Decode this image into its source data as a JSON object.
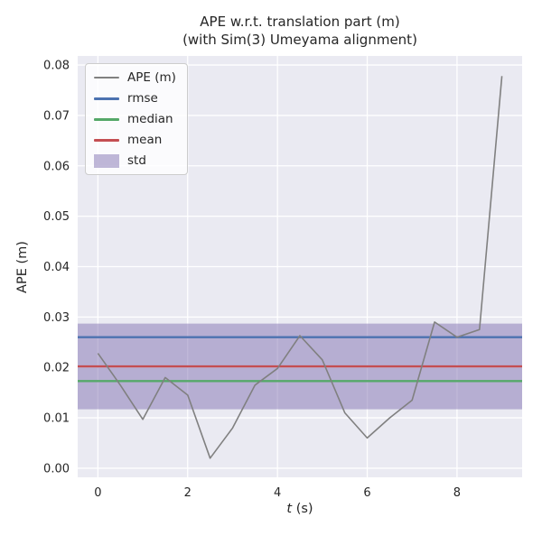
{
  "style": {
    "plot_bg": "#eaeaf2",
    "grid": "#ffffff",
    "text": "#262626"
  },
  "chart_data": {
    "type": "line",
    "title": "APE w.r.t. translation part (m)",
    "subtitle": "(with Sim(3) Umeyama alignment)",
    "xlabel": "t (s)",
    "xlabel_var": "t",
    "xlabel_unit": " (s)",
    "ylabel": "APE (m)",
    "xlim": [
      -0.45,
      9.45
    ],
    "ylim": [
      -0.0018,
      0.0818
    ],
    "grid": true,
    "legend_position": "upper left",
    "xticks": [
      {
        "value": 0,
        "label": "0"
      },
      {
        "value": 2,
        "label": "2"
      },
      {
        "value": 4,
        "label": "4"
      },
      {
        "value": 6,
        "label": "6"
      },
      {
        "value": 8,
        "label": "8"
      }
    ],
    "yticks": [
      {
        "value": 0.0,
        "label": "0.00"
      },
      {
        "value": 0.01,
        "label": "0.01"
      },
      {
        "value": 0.02,
        "label": "0.02"
      },
      {
        "value": 0.03,
        "label": "0.03"
      },
      {
        "value": 0.04,
        "label": "0.04"
      },
      {
        "value": 0.05,
        "label": "0.05"
      },
      {
        "value": 0.06,
        "label": "0.06"
      },
      {
        "value": 0.07,
        "label": "0.07"
      },
      {
        "value": 0.08,
        "label": "0.08"
      }
    ],
    "series": [
      {
        "name": "APE (m)",
        "color": "#808080",
        "x": [
          0,
          0.5,
          1,
          1.5,
          2,
          2.5,
          3,
          3.5,
          4,
          4.5,
          5,
          5.5,
          6,
          6.5,
          7,
          7.5,
          8,
          8.5,
          9
        ],
        "y": [
          0.0228,
          0.0165,
          0.0097,
          0.018,
          0.0145,
          0.002,
          0.008,
          0.0165,
          0.0198,
          0.0263,
          0.0215,
          0.011,
          0.006,
          0.01,
          0.0135,
          0.029,
          0.026,
          0.0275,
          0.0778
        ]
      }
    ],
    "stat_lines": [
      {
        "name": "rmse",
        "value": 0.026,
        "color": "#4c72b0"
      },
      {
        "name": "median",
        "value": 0.0173,
        "color": "#55a868"
      },
      {
        "name": "mean",
        "value": 0.0202,
        "color": "#c44e52"
      }
    ],
    "band": {
      "name": "std",
      "lo": 0.0117,
      "hi": 0.0287,
      "color": "#8172b2",
      "alpha": 0.5
    },
    "legend": [
      {
        "key": "ape",
        "label": "APE (m)",
        "swatch": "line",
        "color": "#808080",
        "lw": 2
      },
      {
        "key": "rmse",
        "label": "rmse",
        "swatch": "line",
        "color": "#4c72b0",
        "lw": 3
      },
      {
        "key": "median",
        "label": "median",
        "swatch": "line",
        "color": "#55a868",
        "lw": 3
      },
      {
        "key": "mean",
        "label": "mean",
        "swatch": "line",
        "color": "#c44e52",
        "lw": 3
      },
      {
        "key": "std",
        "label": "std",
        "swatch": "patch",
        "color": "#8172b2"
      }
    ]
  }
}
